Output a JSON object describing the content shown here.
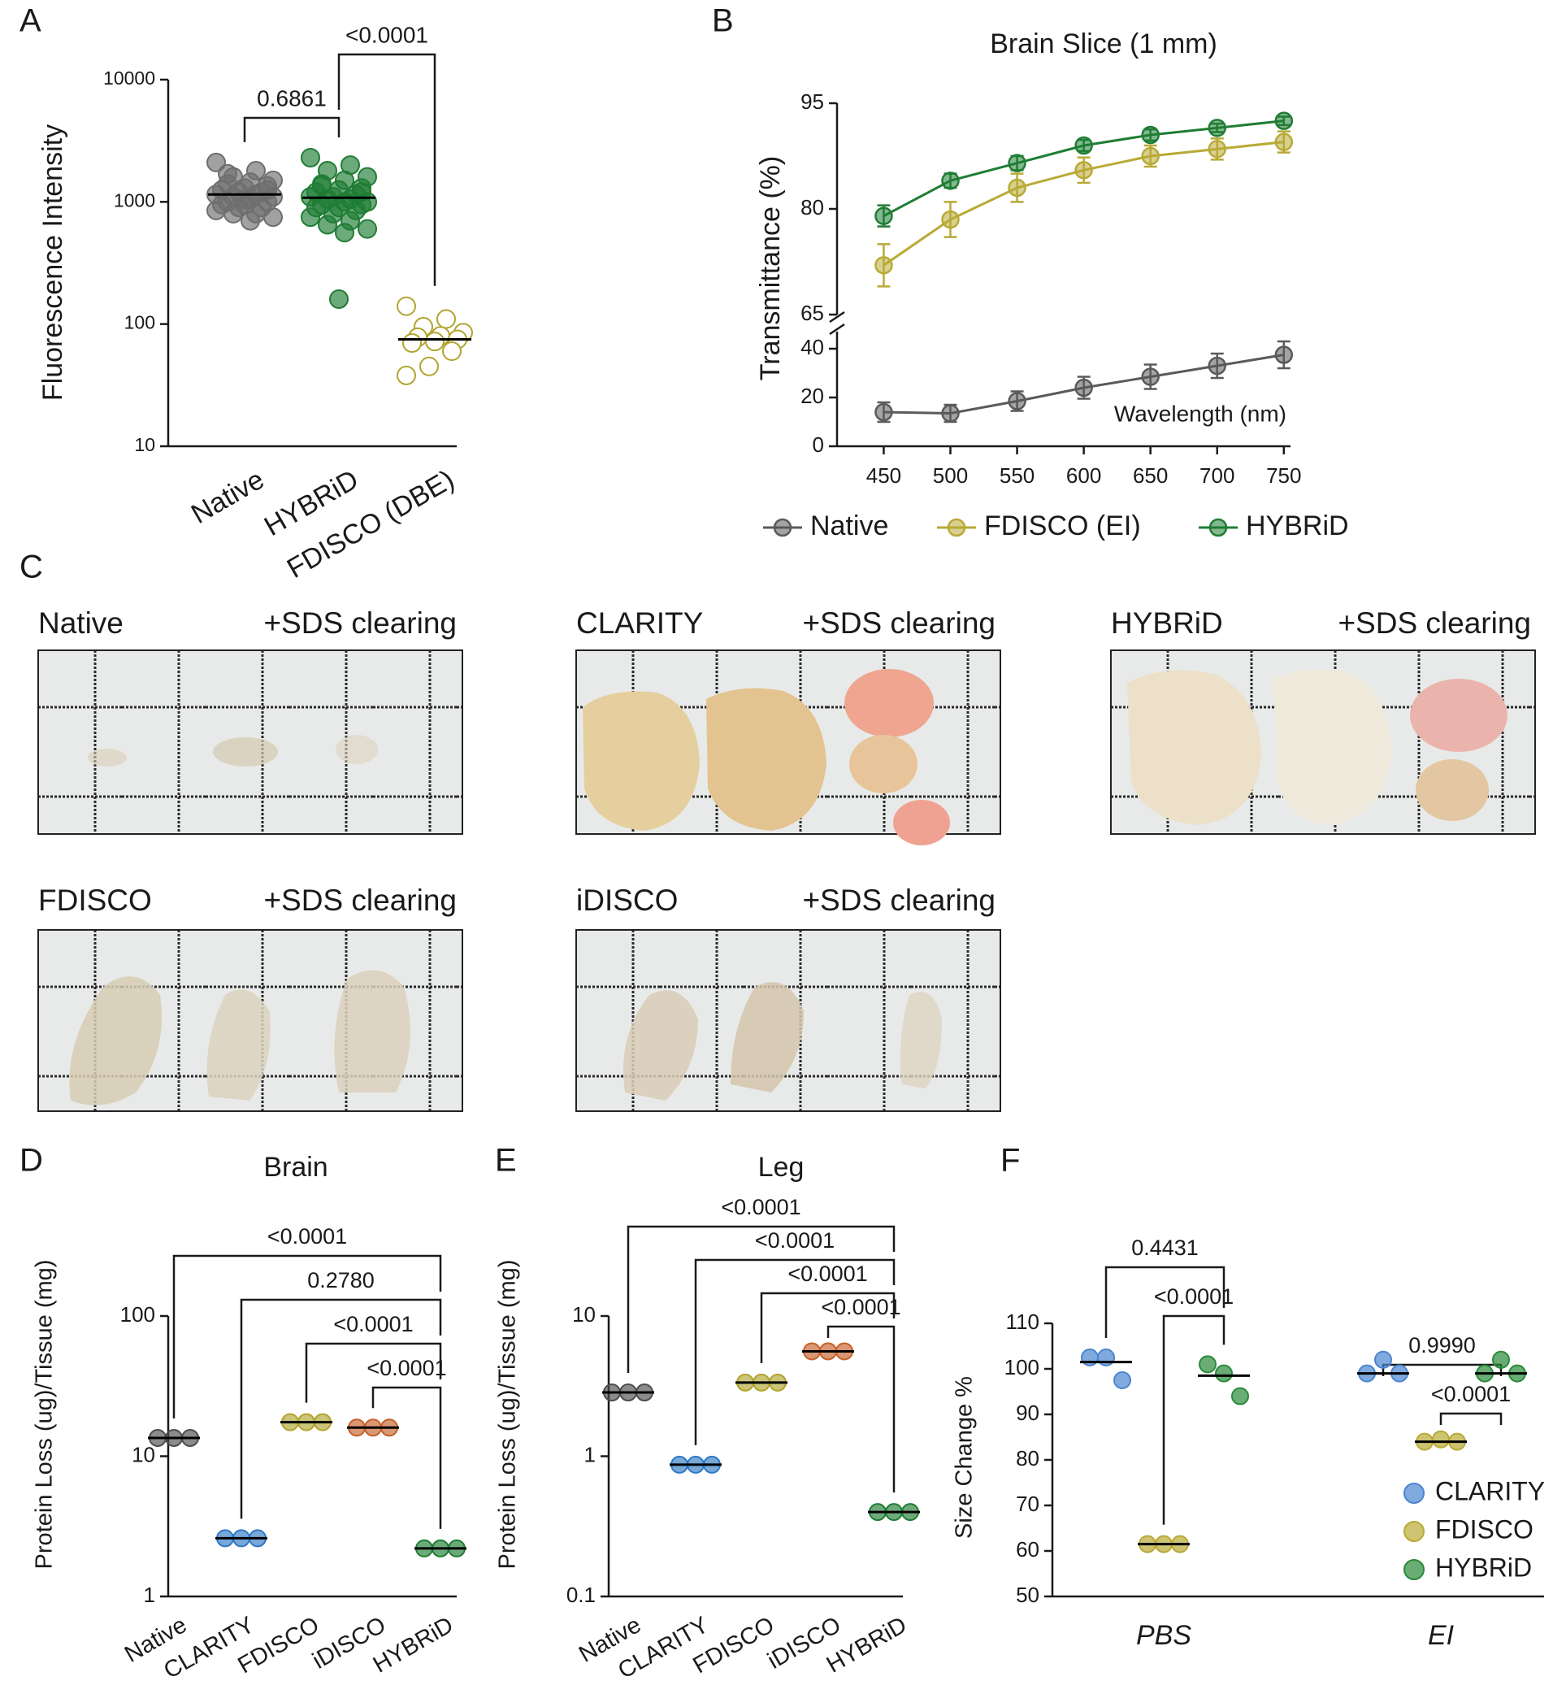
{
  "chart_data": [
    {
      "panel": "A",
      "type": "dot",
      "ylabel": "Fluorescence Intensity",
      "yscale": "log",
      "ylim": [
        10,
        10000
      ],
      "yticks": [
        10,
        100,
        1000,
        10000
      ],
      "series": [
        {
          "name": "Native",
          "color": "#6e6e6e",
          "hollow": false,
          "values": [
            2100,
            1800,
            1600,
            1500,
            1450,
            1400,
            1350,
            1300,
            1250,
            1200,
            1200,
            1150,
            1150,
            1100,
            1100,
            1050,
            1000,
            1000,
            950,
            950,
            900,
            900,
            850,
            800,
            800,
            750,
            700,
            1700,
            1250,
            1050
          ],
          "median": 1150
        },
        {
          "name": "HYBRiD",
          "color": "#1f7d34",
          "hollow": false,
          "values": [
            2300,
            2000,
            1800,
            1600,
            1500,
            1400,
            1300,
            1250,
            1200,
            1150,
            1100,
            1100,
            1050,
            1050,
            1000,
            1000,
            950,
            950,
            900,
            900,
            850,
            800,
            750,
            700,
            650,
            600,
            560,
            1350,
            1200,
            160
          ],
          "median": 1080
        },
        {
          "name": "FDISCO (DBE)",
          "color": "#b1a42e",
          "hollow": true,
          "values": [
            140,
            110,
            95,
            85,
            80,
            78,
            75,
            72,
            70,
            60,
            45,
            38
          ],
          "median": 75
        }
      ],
      "comparisons": [
        {
          "between": [
            "HYBRiD",
            "FDISCO (DBE)"
          ],
          "label": "<0.0001"
        },
        {
          "between": [
            "Native",
            "HYBRiD"
          ],
          "label": "0.6861"
        }
      ]
    },
    {
      "panel": "B",
      "type": "line",
      "title": "Brain Slice (1 mm)",
      "ylabel": "Transmittance (%)",
      "xlabel": "Wavelength (nm)",
      "x": [
        450,
        500,
        550,
        600,
        650,
        700,
        750
      ],
      "xlim": [
        415,
        755
      ],
      "xticks": [
        450,
        500,
        550,
        600,
        650,
        700,
        750
      ],
      "ylim": [
        0,
        95
      ],
      "ybreak": [
        47,
        65
      ],
      "yticks": [
        0,
        20,
        40,
        65,
        80,
        95
      ],
      "series": [
        {
          "name": "Native",
          "color": "#5a5a5a",
          "values": [
            14,
            13.5,
            18.5,
            24,
            28.5,
            33,
            37.5
          ],
          "errors": [
            4,
            3.5,
            4,
            4.5,
            5,
            5,
            5.5
          ]
        },
        {
          "name": "FDISCO (EI)",
          "color": "#b8aa35",
          "values": [
            72,
            78.5,
            83,
            85.5,
            87.5,
            88.5,
            89.5
          ],
          "errors": [
            3,
            2.5,
            2,
            1.8,
            1.5,
            1.5,
            1.5
          ]
        },
        {
          "name": "HYBRiD",
          "color": "#1f7d34",
          "values": [
            79,
            84,
            86.5,
            89,
            90.5,
            91.5,
            92.5
          ],
          "errors": [
            1.5,
            1,
            1,
            0.8,
            0.8,
            0.6,
            0.6
          ]
        }
      ]
    },
    {
      "panel": "D",
      "type": "dot",
      "title": "Brain",
      "ylabel": "Protein Loss (ug)/Tissue (mg)",
      "yscale": "log",
      "ylim": [
        1,
        100
      ],
      "yticks": [
        1,
        10,
        100
      ],
      "series": [
        {
          "name": "Native",
          "color": "#4d4d4d",
          "hollow": false,
          "values": [
            13.5,
            13.5,
            13.5
          ],
          "median": 13.5
        },
        {
          "name": "CLARITY",
          "color": "#2f78c4",
          "hollow": false,
          "values": [
            2.6,
            2.6,
            2.6
          ],
          "median": 2.6
        },
        {
          "name": "FDISCO",
          "color": "#b1a42e",
          "hollow": false,
          "values": [
            17.5,
            17.5,
            17.5
          ],
          "median": 17.5
        },
        {
          "name": "iDISCO",
          "color": "#c6602a",
          "hollow": false,
          "values": [
            16,
            16,
            16
          ],
          "median": 16
        },
        {
          "name": "HYBRiD",
          "color": "#1f7d34",
          "hollow": false,
          "values": [
            2.2,
            2.2,
            2.2
          ],
          "median": 2.2
        }
      ],
      "comparisons": [
        {
          "between": [
            "Native",
            "HYBRiD"
          ],
          "label": "<0.0001"
        },
        {
          "between": [
            "CLARITY",
            "HYBRiD"
          ],
          "label": "0.2780"
        },
        {
          "between": [
            "FDISCO",
            "HYBRiD"
          ],
          "label": "<0.0001"
        },
        {
          "between": [
            "iDISCO",
            "HYBRiD"
          ],
          "label": "<0.0001"
        }
      ]
    },
    {
      "panel": "E",
      "type": "dot",
      "title": "Leg",
      "ylabel": "Protein Loss (ug)/Tissue (mg)",
      "yscale": "log",
      "ylim": [
        0.1,
        10
      ],
      "yticks": [
        0.1,
        1,
        10
      ],
      "series": [
        {
          "name": "Native",
          "color": "#4d4d4d",
          "hollow": false,
          "values": [
            2.85,
            2.85,
            2.85
          ],
          "median": 2.85
        },
        {
          "name": "CLARITY",
          "color": "#2f78c4",
          "hollow": false,
          "values": [
            0.87,
            0.87,
            0.87
          ],
          "median": 0.87
        },
        {
          "name": "FDISCO",
          "color": "#b1a42e",
          "hollow": false,
          "values": [
            3.35,
            3.35,
            3.35
          ],
          "median": 3.35
        },
        {
          "name": "iDISCO",
          "color": "#c6602a",
          "hollow": false,
          "values": [
            5.6,
            5.6,
            5.6
          ],
          "median": 5.6
        },
        {
          "name": "HYBRiD",
          "color": "#1f7d34",
          "hollow": false,
          "values": [
            0.4,
            0.4,
            0.4
          ],
          "median": 0.4
        }
      ],
      "comparisons": [
        {
          "between": [
            "Native",
            "HYBRiD"
          ],
          "label": "<0.0001"
        },
        {
          "between": [
            "CLARITY",
            "HYBRiD"
          ],
          "label": "<0.0001"
        },
        {
          "between": [
            "FDISCO",
            "HYBRiD"
          ],
          "label": "<0.0001"
        },
        {
          "between": [
            "iDISCO",
            "HYBRiD"
          ],
          "label": "<0.0001"
        }
      ]
    },
    {
      "panel": "F",
      "type": "dotgroup",
      "ylabel": "Size Change %",
      "ylim": [
        50,
        110
      ],
      "yticks": [
        50,
        60,
        70,
        80,
        90,
        100,
        110
      ],
      "categories": [
        "PBS",
        "EI"
      ],
      "legend": "lower right",
      "series": [
        {
          "name": "CLARITY",
          "color": "#4a86d0",
          "values": [
            [
              102.5,
              102.5,
              97.5
            ],
            [
              99,
              102,
              99
            ]
          ],
          "medians": [
            101.5,
            99
          ]
        },
        {
          "name": "FDISCO",
          "color": "#b8aa35",
          "values": [
            [
              61.5,
              61.5,
              61.5
            ],
            [
              84,
              84.5,
              84
            ]
          ],
          "medians": [
            61.5,
            84
          ]
        },
        {
          "name": "HYBRiD",
          "color": "#2a8a3a",
          "values": [
            [
              101,
              99,
              94
            ],
            [
              99,
              102,
              99
            ]
          ],
          "medians": [
            98.5,
            99
          ]
        }
      ],
      "comparisons": [
        {
          "category": "PBS",
          "between": [
            "CLARITY",
            "HYBRiD"
          ],
          "label": "0.4431"
        },
        {
          "category": "PBS",
          "between": [
            "FDISCO",
            "HYBRiD"
          ],
          "label": "<0.0001"
        },
        {
          "category": "EI",
          "between": [
            "CLARITY",
            "HYBRiD"
          ],
          "label": "0.9990"
        },
        {
          "category": "EI",
          "between": [
            "FDISCO",
            "HYBRiD"
          ],
          "label": "<0.0001"
        }
      ]
    }
  ],
  "panel_c": {
    "panel": "C",
    "photos": [
      {
        "label": "Native",
        "color": "#5b5b5b",
        "caption": "+SDS clearing"
      },
      {
        "label": "CLARITY",
        "color": "#2f78c4",
        "caption": "+SDS clearing"
      },
      {
        "label": "HYBRiD",
        "color": "#1e7b34",
        "caption": "+SDS clearing"
      },
      {
        "label": "FDISCO",
        "color": "#b1a42e",
        "caption": "+SDS clearing"
      },
      {
        "label": "iDISCO",
        "color": "#c6602a",
        "caption": "+SDS clearing"
      }
    ]
  }
}
